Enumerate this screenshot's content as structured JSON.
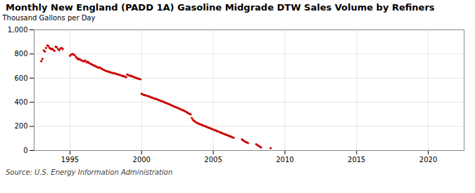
{
  "chart_data": {
    "type": "scatter",
    "title": "Monthly New England (PADD 1A) Gasoline Midgrade DTW Sales Volume by Refiners",
    "ylabel": "Thousand Gallons per Day",
    "annotation": "Source: U.S. Energy Information Administration",
    "color": "#cc0000",
    "grid": true,
    "xlim": [
      1992.5,
      2022.5
    ],
    "ylim": [
      0,
      1000
    ],
    "xticks": [
      1995,
      2000,
      2005,
      2010,
      2015,
      2020
    ],
    "yticks": [
      0,
      200,
      400,
      600,
      800,
      {
        "value": 1000,
        "label": "1,000"
      }
    ],
    "x": [
      1993.0,
      1993.08,
      1993.17,
      1993.25,
      1993.33,
      1993.42,
      1993.5,
      1993.58,
      1993.67,
      1993.75,
      1993.83,
      1993.92,
      1994.0,
      1994.08,
      1994.17,
      1994.25,
      1994.33,
      1994.42,
      1994.5,
      1995.0,
      1995.08,
      1995.17,
      1995.25,
      1995.33,
      1995.42,
      1995.5,
      1995.58,
      1995.67,
      1995.75,
      1995.83,
      1995.92,
      1996.0,
      1996.08,
      1996.17,
      1996.25,
      1996.33,
      1996.42,
      1996.5,
      1996.58,
      1996.67,
      1996.75,
      1996.83,
      1996.92,
      1997.0,
      1997.08,
      1997.17,
      1997.25,
      1997.33,
      1997.42,
      1997.5,
      1997.58,
      1997.67,
      1997.75,
      1997.83,
      1997.92,
      1998.0,
      1998.08,
      1998.17,
      1998.25,
      1998.33,
      1998.42,
      1998.5,
      1998.58,
      1998.67,
      1998.75,
      1998.83,
      1998.92,
      1999.0,
      1999.08,
      1999.17,
      1999.25,
      1999.33,
      1999.42,
      1999.5,
      1999.58,
      1999.67,
      1999.75,
      1999.83,
      1999.92,
      2000.0,
      2000.08,
      2000.17,
      2000.25,
      2000.33,
      2000.42,
      2000.5,
      2000.58,
      2000.67,
      2000.75,
      2000.83,
      2000.92,
      2001.0,
      2001.08,
      2001.17,
      2001.25,
      2001.33,
      2001.42,
      2001.5,
      2001.58,
      2001.67,
      2001.75,
      2001.83,
      2001.92,
      2002.0,
      2002.08,
      2002.17,
      2002.25,
      2002.33,
      2002.42,
      2002.5,
      2002.58,
      2002.67,
      2002.75,
      2002.83,
      2002.92,
      2003.0,
      2003.08,
      2003.17,
      2003.25,
      2003.33,
      2003.42,
      2003.5,
      2003.58,
      2003.67,
      2003.75,
      2003.83,
      2003.92,
      2004.0,
      2004.08,
      2004.17,
      2004.25,
      2004.33,
      2004.42,
      2004.5,
      2004.58,
      2004.67,
      2004.75,
      2004.83,
      2004.92,
      2005.0,
      2005.08,
      2005.17,
      2005.25,
      2005.33,
      2005.42,
      2005.5,
      2005.58,
      2005.67,
      2005.75,
      2005.83,
      2005.92,
      2006.0,
      2006.08,
      2006.17,
      2006.25,
      2006.33,
      2006.42,
      2007.0,
      2007.08,
      2007.17,
      2007.25,
      2007.33,
      2007.42,
      2008.0,
      2008.08,
      2008.17,
      2008.25,
      2008.33,
      2009.0
    ],
    "values": [
      740,
      760,
      830,
      820,
      850,
      870,
      865,
      850,
      840,
      845,
      835,
      825,
      860,
      855,
      840,
      830,
      845,
      850,
      840,
      785,
      795,
      800,
      795,
      790,
      775,
      765,
      755,
      760,
      750,
      745,
      740,
      740,
      745,
      730,
      735,
      725,
      720,
      715,
      710,
      705,
      700,
      695,
      690,
      685,
      690,
      680,
      675,
      670,
      665,
      660,
      658,
      655,
      650,
      648,
      645,
      642,
      640,
      638,
      635,
      632,
      628,
      625,
      622,
      618,
      615,
      612,
      608,
      630,
      625,
      620,
      618,
      615,
      610,
      607,
      603,
      600,
      597,
      593,
      590,
      470,
      465,
      460,
      458,
      455,
      452,
      448,
      445,
      440,
      438,
      433,
      430,
      428,
      424,
      420,
      416,
      412,
      408,
      405,
      400,
      396,
      392,
      388,
      384,
      380,
      375,
      370,
      366,
      362,
      358,
      354,
      350,
      345,
      340,
      336,
      332,
      328,
      322,
      316,
      310,
      305,
      300,
      270,
      255,
      245,
      238,
      232,
      226,
      222,
      218,
      214,
      210,
      206,
      202,
      198,
      194,
      190,
      186,
      182,
      178,
      174,
      170,
      166,
      162,
      158,
      154,
      150,
      146,
      142,
      138,
      134,
      130,
      126,
      122,
      118,
      114,
      110,
      106,
      92,
      85,
      78,
      72,
      68,
      62,
      52,
      45,
      38,
      32,
      26,
      20
    ]
  }
}
